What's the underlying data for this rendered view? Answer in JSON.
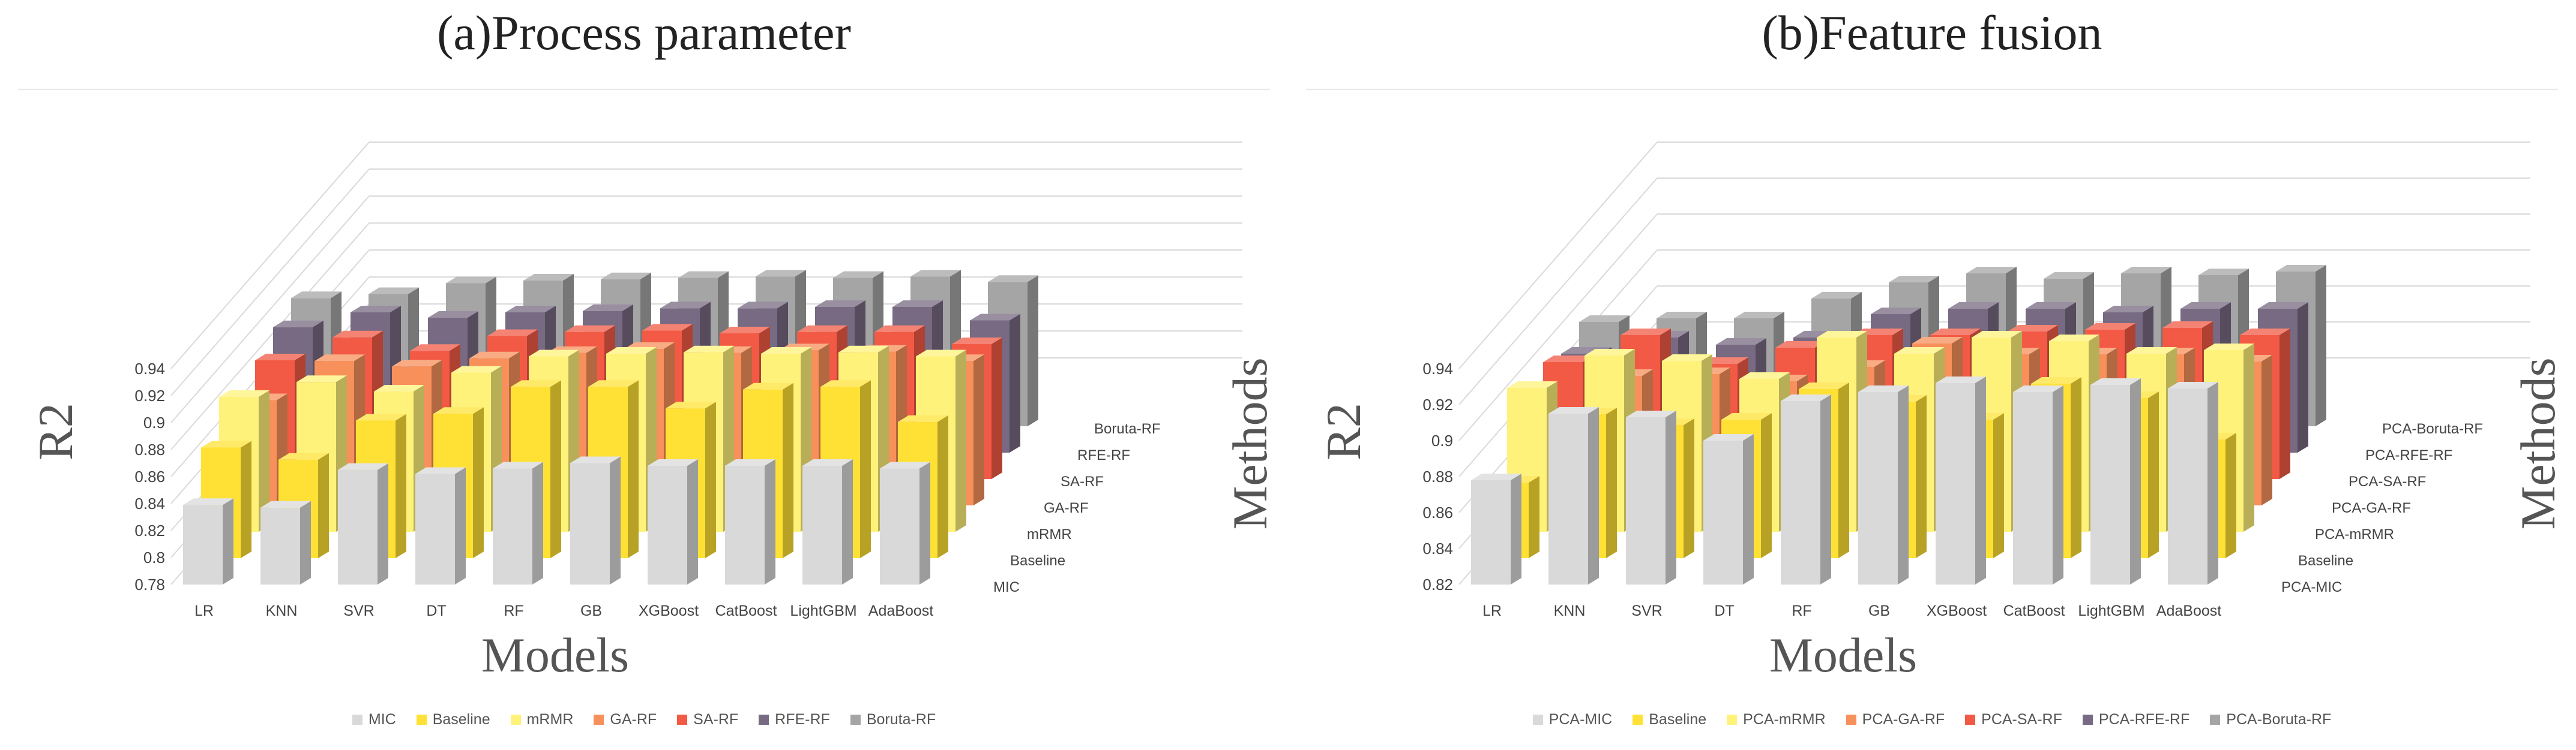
{
  "chart_data": [
    {
      "type": "bar",
      "title": "(a)Process parameter",
      "xlabel": "Models",
      "ylabel": "R2",
      "zlabel": "Methods",
      "ylim": [
        0.78,
        0.94
      ],
      "yticks": [
        "0.78",
        "0.8",
        "0.82",
        "0.84",
        "0.86",
        "0.88",
        "0.9",
        "0.92",
        "0.94"
      ],
      "categories": [
        "LR",
        "KNN",
        "SVR",
        "DT",
        "RF",
        "GB",
        "XGBoost",
        "CatBoost",
        "LightGBM",
        "AdaBoost"
      ],
      "legend_position": "bottom",
      "series": [
        {
          "name": "MIC",
          "color": "#d9d9d9",
          "values": [
            0.839,
            0.837,
            0.865,
            0.862,
            0.866,
            0.87,
            0.868,
            0.868,
            0.868,
            0.866
          ]
        },
        {
          "name": "Baseline",
          "color": "#ffe135",
          "values": [
            0.862,
            0.853,
            0.882,
            0.887,
            0.907,
            0.907,
            0.891,
            0.905,
            0.907,
            0.881
          ]
        },
        {
          "name": "mRMR",
          "color": "#fff27a",
          "values": [
            0.88,
            0.891,
            0.884,
            0.898,
            0.91,
            0.912,
            0.913,
            0.912,
            0.913,
            0.91
          ]
        },
        {
          "name": "GA-RF",
          "color": "#f7905a",
          "values": [
            0.858,
            0.887,
            0.883,
            0.889,
            0.893,
            0.896,
            0.893,
            0.895,
            0.894,
            0.887
          ]
        },
        {
          "name": "SA-RF",
          "color": "#f25a45",
          "values": [
            0.868,
            0.885,
            0.875,
            0.886,
            0.889,
            0.89,
            0.888,
            0.889,
            0.889,
            0.88
          ]
        },
        {
          "name": "RFE-RF",
          "color": "#776a82",
          "values": [
            0.873,
            0.884,
            0.88,
            0.884,
            0.885,
            0.887,
            0.887,
            0.888,
            0.888,
            0.878
          ]
        },
        {
          "name": "Boruta-RF",
          "color": "#a5a5a5",
          "values": [
            0.875,
            0.878,
            0.886,
            0.888,
            0.889,
            0.89,
            0.891,
            0.89,
            0.891,
            0.887
          ]
        }
      ]
    },
    {
      "type": "bar",
      "title": "(b)Feature fusion",
      "xlabel": "Models",
      "ylabel": "R2",
      "zlabel": "Methods",
      "ylim": [
        0.82,
        0.94
      ],
      "yticks": [
        "0.82",
        "0.84",
        "0.86",
        "0.88",
        "0.9",
        "0.92",
        "0.94"
      ],
      "categories": [
        "LR",
        "KNN",
        "SVR",
        "DT",
        "RF",
        "GB",
        "XGBoost",
        "CatBoost",
        "LightGBM",
        "AdaBoost"
      ],
      "legend_position": "bottom",
      "series": [
        {
          "name": "PCA-MIC",
          "color": "#d9d9d9",
          "values": [
            0.878,
            0.915,
            0.913,
            0.9,
            0.922,
            0.927,
            0.932,
            0.927,
            0.931,
            0.929
          ]
        },
        {
          "name": "Baseline",
          "color": "#ffe135",
          "values": [
            0.862,
            0.9,
            0.894,
            0.897,
            0.914,
            0.907,
            0.897,
            0.917,
            0.909,
            0.886
          ]
        },
        {
          "name": "PCA-mRMR",
          "color": "#fff27a",
          "values": [
            0.9,
            0.918,
            0.915,
            0.905,
            0.928,
            0.919,
            0.928,
            0.926,
            0.919,
            0.921
          ]
        },
        {
          "name": "PCA-GA-RF",
          "color": "#f7905a",
          "values": [
            0.87,
            0.892,
            0.893,
            0.889,
            0.897,
            0.91,
            0.904,
            0.904,
            0.904,
            0.9
          ]
        },
        {
          "name": "PCA-SA-RF",
          "color": "#f25a45",
          "values": [
            0.885,
            0.9,
            0.884,
            0.893,
            0.9,
            0.9,
            0.902,
            0.903,
            0.904,
            0.9
          ]
        },
        {
          "name": "PCA-RFE-RF",
          "color": "#776a82",
          "values": [
            0.875,
            0.884,
            0.88,
            0.884,
            0.897,
            0.9,
            0.9,
            0.898,
            0.9,
            0.9
          ]
        },
        {
          "name": "PCA-Boruta-RF",
          "color": "#a5a5a5",
          "values": [
            0.878,
            0.88,
            0.88,
            0.891,
            0.9,
            0.905,
            0.902,
            0.905,
            0.904,
            0.906
          ]
        }
      ]
    }
  ]
}
